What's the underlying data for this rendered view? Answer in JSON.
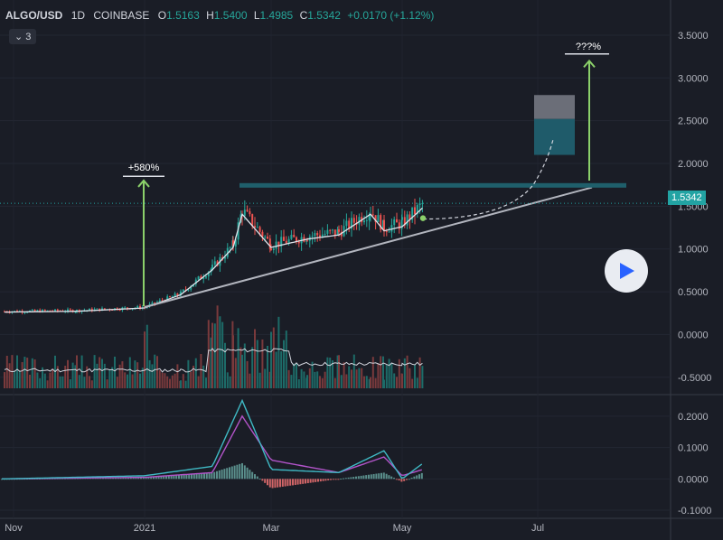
{
  "header": {
    "symbol": "ALGO/USD",
    "interval": "1D",
    "exchange": "COINBASE",
    "open_label": "O",
    "open": "1.5163",
    "high_label": "H",
    "high": "1.5400",
    "low_label": "L",
    "low": "1.4985",
    "close_label": "C",
    "close": "1.5342",
    "change": "+0.0170 (+1.12%)",
    "collapse_count": "3"
  },
  "colors": {
    "background": "#1a1d26",
    "up": "#26a69a",
    "down": "#ef5350",
    "arrow": "#8bd06a",
    "resistance": "#1f5f6b",
    "macd": "#3fb9c4",
    "signal": "#b254c9"
  },
  "annotations": {
    "gain_left": "+580%",
    "gain_right": "???%"
  },
  "last_price": "1.5342",
  "chart_data": [
    {
      "type": "line",
      "title": "",
      "pane": "price",
      "y_ticks": [
        "3.5000",
        "3.0000",
        "2.5000",
        "2.0000",
        "1.5000",
        "1.0000",
        "0.5000",
        "0.0000",
        "-0.5000"
      ],
      "ylim": [
        -0.65,
        3.7
      ],
      "x_ticks": [
        "Nov",
        "2021",
        "Mar",
        "May",
        "Jul"
      ],
      "grid": true,
      "series": [
        {
          "name": "",
          "x": [
            "Nov",
            "Dec",
            "2021",
            "Jan-15",
            "Feb",
            "Feb-15",
            "Feb-20",
            "Mar",
            "Mar-15",
            "Apr",
            "Apr-10",
            "Apr-20",
            "May",
            "May-10"
          ],
          "values": [
            0.27,
            0.28,
            0.32,
            0.48,
            0.78,
            1.05,
            1.45,
            1.05,
            1.15,
            1.2,
            1.45,
            1.25,
            1.3,
            1.53
          ]
        }
      ]
    },
    {
      "type": "bar",
      "pane": "volume",
      "note": "volume bars with moving average, no printed values",
      "values": []
    },
    {
      "type": "line",
      "pane": "macd",
      "y_ticks": [
        "0.2000",
        "0.1000",
        "0.0000",
        "-0.1000"
      ],
      "ylim": [
        -0.12,
        0.26
      ],
      "series": [
        {
          "name": "",
          "x": [
            "Nov",
            "2021",
            "Feb",
            "Feb-20",
            "Mar",
            "Apr",
            "Apr-20",
            "May",
            "May-10"
          ],
          "values": [
            0.0,
            0.01,
            0.04,
            0.25,
            0.03,
            0.02,
            0.09,
            0.0,
            0.05
          ]
        },
        {
          "name": "",
          "x": [
            "Nov",
            "2021",
            "Feb",
            "Feb-20",
            "Mar",
            "Apr",
            "Apr-20",
            "May",
            "May-10"
          ],
          "values": [
            0.0,
            0.005,
            0.02,
            0.2,
            0.06,
            0.02,
            0.07,
            0.01,
            0.03
          ]
        }
      ]
    }
  ]
}
